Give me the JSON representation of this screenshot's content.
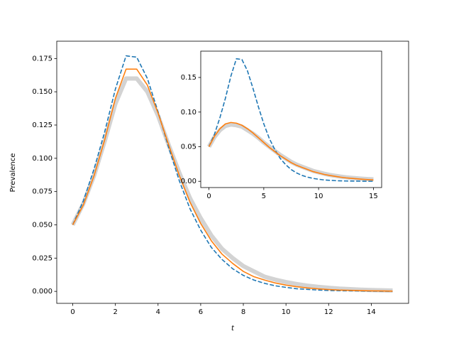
{
  "chart_data": [
    {
      "type": "line",
      "xlabel": "t",
      "ylabel": "Prevalence",
      "x": [
        0,
        0.5,
        1,
        1.5,
        2,
        2.5,
        3,
        3.5,
        4,
        4.5,
        5,
        5.5,
        6,
        6.5,
        7,
        7.5,
        8,
        8.5,
        9,
        9.5,
        10,
        10.5,
        11,
        11.5,
        12,
        12.5,
        13,
        13.5,
        14,
        14.5,
        15
      ],
      "series": [
        {
          "color": "#d3d3d3",
          "linestyle": "wide",
          "values": [
            0.05,
            0.066,
            0.087,
            0.113,
            0.141,
            0.16,
            0.16,
            0.15,
            0.132,
            0.11,
            0.089,
            0.07,
            0.055,
            0.042,
            0.032,
            0.025,
            0.019,
            0.015,
            0.011,
            0.0088,
            0.007,
            0.0055,
            0.0043,
            0.0034,
            0.0027,
            0.0021,
            0.0017,
            0.0013,
            0.001,
            0.0008,
            0.0006
          ]
        },
        {
          "color": "#1f77b4",
          "linestyle": "dashed",
          "values": [
            0.05,
            0.068,
            0.092,
            0.12,
            0.152,
            0.177,
            0.176,
            0.16,
            0.135,
            0.108,
            0.083,
            0.062,
            0.046,
            0.033,
            0.024,
            0.017,
            0.012,
            0.0085,
            0.006,
            0.0042,
            0.003,
            0.002,
            0.0015,
            0.001,
            0.0007,
            0.0005,
            0.0004,
            0.0003,
            0.0002,
            0.0001,
            0.0001
          ]
        },
        {
          "color": "#ff7f0e",
          "linestyle": "solid",
          "values": [
            0.05,
            0.065,
            0.087,
            0.114,
            0.145,
            0.167,
            0.167,
            0.155,
            0.134,
            0.11,
            0.087,
            0.067,
            0.051,
            0.038,
            0.028,
            0.021,
            0.015,
            0.011,
            0.0085,
            0.0063,
            0.0047,
            0.0035,
            0.0026,
            0.0019,
            0.0014,
            0.001,
            0.0008,
            0.0006,
            0.0004,
            0.0003,
            0.0002
          ]
        }
      ],
      "xlim": [
        -0.75,
        15.75
      ],
      "xticks": [
        0,
        2,
        4,
        6,
        8,
        10,
        12,
        14
      ],
      "ylim": [
        -0.009,
        0.188
      ],
      "yticks": [
        {
          "value": 0,
          "label": "0.000"
        },
        {
          "value": 0.025,
          "label": "0.025"
        },
        {
          "value": 0.05,
          "label": "0.050"
        },
        {
          "value": 0.075,
          "label": "0.075"
        },
        {
          "value": 0.1,
          "label": "0.100"
        },
        {
          "value": 0.125,
          "label": "0.125"
        },
        {
          "value": 0.15,
          "label": "0.150"
        },
        {
          "value": 0.175,
          "label": "0.175"
        }
      ]
    },
    {
      "type": "line",
      "x": [
        0,
        0.5,
        1,
        1.5,
        2,
        2.5,
        3,
        3.5,
        4,
        4.5,
        5,
        5.5,
        6,
        6.5,
        7,
        7.5,
        8,
        8.5,
        9,
        9.5,
        10,
        10.5,
        11,
        11.5,
        12,
        12.5,
        13,
        13.5,
        14,
        14.5,
        15
      ],
      "series": [
        {
          "color": "#d3d3d3",
          "linestyle": "wide",
          "values": [
            0.05,
            0.064,
            0.074,
            0.08,
            0.082,
            0.081,
            0.079,
            0.074,
            0.069,
            0.063,
            0.056,
            0.05,
            0.044,
            0.038,
            0.033,
            0.028,
            0.024,
            0.021,
            0.018,
            0.015,
            0.013,
            0.011,
            0.0093,
            0.008,
            0.0068,
            0.0058,
            0.005,
            0.0043,
            0.0037,
            0.0032,
            0.0028
          ]
        },
        {
          "color": "#1f77b4",
          "linestyle": "dashed",
          "values": [
            0.05,
            0.068,
            0.092,
            0.12,
            0.152,
            0.177,
            0.176,
            0.16,
            0.135,
            0.108,
            0.083,
            0.062,
            0.046,
            0.033,
            0.024,
            0.017,
            0.012,
            0.0085,
            0.006,
            0.0042,
            0.003,
            0.002,
            0.0015,
            0.001,
            0.0007,
            0.0005,
            0.0004,
            0.0003,
            0.0002,
            0.0001,
            0.0001
          ]
        },
        {
          "color": "#ff7f0e",
          "linestyle": "solid",
          "values": [
            0.05,
            0.065,
            0.076,
            0.083,
            0.085,
            0.084,
            0.081,
            0.076,
            0.07,
            0.063,
            0.056,
            0.049,
            0.043,
            0.037,
            0.032,
            0.027,
            0.023,
            0.02,
            0.017,
            0.014,
            0.012,
            0.01,
            0.0085,
            0.0072,
            0.006,
            0.005,
            0.0043,
            0.0036,
            0.003,
            0.0025,
            0.002
          ]
        }
      ],
      "xlim": [
        -0.75,
        15.75
      ],
      "xticks": [
        0,
        5,
        10,
        15
      ],
      "ylim": [
        -0.009,
        0.188
      ],
      "yticks": [
        {
          "value": 0,
          "label": "0.00"
        },
        {
          "value": 0.05,
          "label": "0.05"
        },
        {
          "value": 0.1,
          "label": "0.10"
        },
        {
          "value": 0.15,
          "label": "0.15"
        }
      ]
    }
  ]
}
